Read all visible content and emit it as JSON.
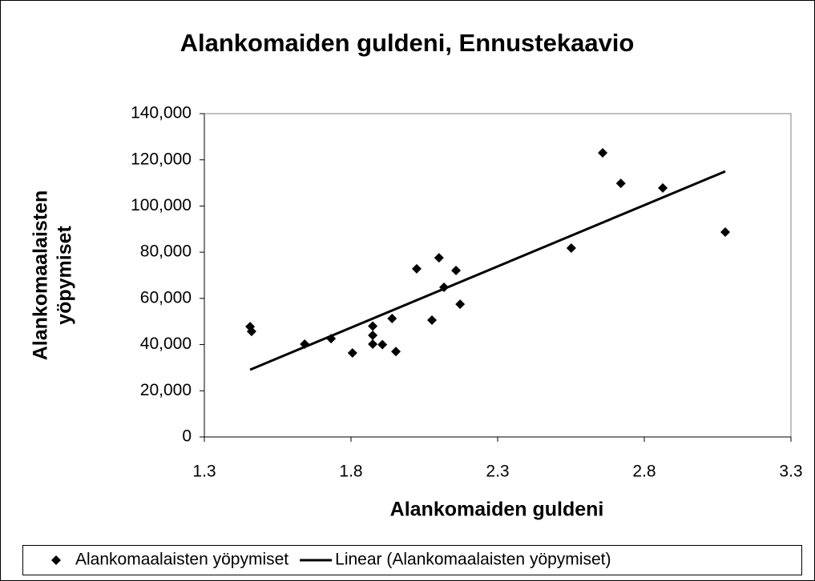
{
  "chart_data": {
    "type": "scatter",
    "title": "Alankomaiden guldeni, Ennustekaavio",
    "x_label": "Alankomaiden guldeni",
    "y_label_lines": [
      "Alankomaalaisten",
      "yöpymiset"
    ],
    "xlim": [
      1.3,
      3.3
    ],
    "xticks": [
      1.3,
      1.8,
      2.3,
      2.8,
      3.3
    ],
    "ylim": [
      0,
      140000
    ],
    "yticks": [
      0,
      {
        "value": 20000,
        "label": "20,000"
      },
      {
        "value": 40000,
        "label": "40,000"
      },
      {
        "value": 60000,
        "label": "60,000"
      },
      {
        "value": 80000,
        "label": "80,000"
      },
      {
        "value": 100000,
        "label": "100,000"
      },
      {
        "value": 120000,
        "label": "120,000"
      },
      {
        "value": 140000,
        "label": "140,000"
      }
    ],
    "legend": "bottom",
    "series": [
      {
        "name": "Alankomaalaisten yöpymiset",
        "color": "#000000",
        "kind": "points",
        "x": [
          1.456,
          1.461,
          1.642,
          1.732,
          1.805,
          1.874,
          1.874,
          1.874,
          1.907,
          1.94,
          1.953,
          2.024,
          2.076,
          2.1,
          2.117,
          2.158,
          2.172,
          2.551,
          2.658,
          2.72,
          2.863,
          3.076
        ],
        "values": [
          47800,
          45700,
          40200,
          42600,
          36400,
          48000,
          44000,
          40200,
          40000,
          51300,
          37000,
          72800,
          50600,
          77600,
          64800,
          72100,
          57500,
          81800,
          123000,
          109800,
          107800,
          88700
        ]
      },
      {
        "name": "Linear (Alankomaalaisten yöpymiset)",
        "color": "#000000",
        "kind": "line",
        "x": [
          1.456,
          3.076
        ],
        "values": [
          29100,
          115000
        ]
      }
    ]
  }
}
